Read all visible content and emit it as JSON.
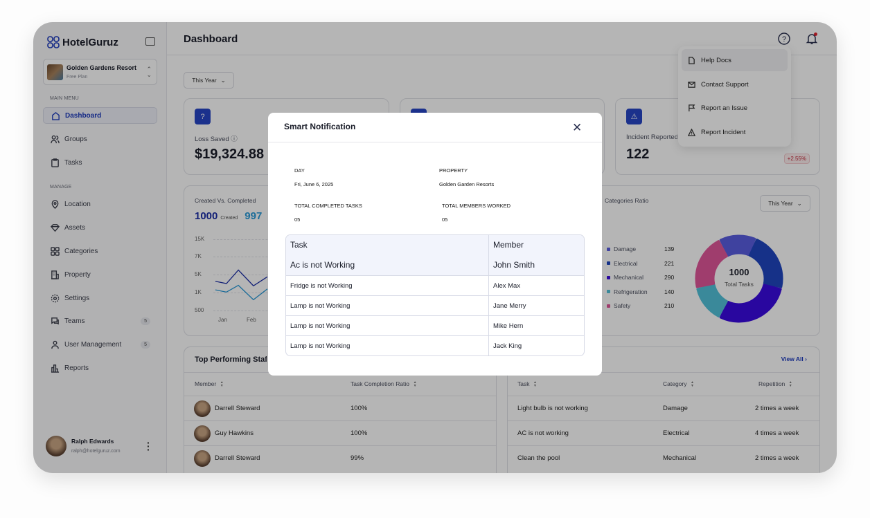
{
  "app": {
    "name": "HotelGuruz",
    "property": {
      "name": "Golden Gardens Resort",
      "plan": "Free Plan"
    }
  },
  "sidebar": {
    "main_menu_label": "MAIN MENU",
    "manage_label": "MANAGE",
    "main_items": [
      {
        "label": "Dashboard",
        "icon": "home-icon"
      },
      {
        "label": "Groups",
        "icon": "users-icon"
      },
      {
        "label": "Tasks",
        "icon": "clipboard-icon"
      }
    ],
    "manage_items": [
      {
        "label": "Location",
        "icon": "map-pin-icon",
        "badge": null
      },
      {
        "label": "Assets",
        "icon": "diamond-icon",
        "badge": null
      },
      {
        "label": "Categories",
        "icon": "grid-icon",
        "badge": null
      },
      {
        "label": "Property",
        "icon": "building-icon",
        "badge": null
      },
      {
        "label": "Settings",
        "icon": "gear-icon",
        "badge": null
      },
      {
        "label": "Teams",
        "icon": "chat-icon",
        "badge": "5"
      },
      {
        "label": "User Management",
        "icon": "user-icon",
        "badge": "5"
      },
      {
        "label": "Reports",
        "icon": "bar-chart-icon",
        "badge": null
      }
    ],
    "user": {
      "name": "Ralph Edwards",
      "email": "ralph@hotelguruz.com"
    }
  },
  "header": {
    "title": "Dashboard"
  },
  "help_menu": {
    "items": [
      "Help Docs",
      "Contact Support",
      "Report an Issue",
      "Report Incident"
    ]
  },
  "filter": "This Year",
  "stats": [
    {
      "label": "Loss Saved",
      "value": "$19,324.88"
    },
    {
      "label": "Incident Reported",
      "value": "122",
      "change": "+2.55%"
    }
  ],
  "colors": {
    "brand": "#1d3bbd",
    "negative": "#c3283a"
  },
  "chart_data": [
    {
      "type": "line",
      "title": "Created Vs. Completed",
      "summary": {
        "created": "1000",
        "created_label": "Created",
        "completed": "997"
      },
      "y_ticks": [
        "15K",
        "7K",
        "5K",
        "1K",
        "500"
      ],
      "x_ticks": [
        "Jan",
        "Feb"
      ],
      "series": [
        {
          "color": "#1d2fa8",
          "values": [
            [
              -0.27,
              3500
            ],
            [
              0.12,
              3000
            ],
            [
              0.54,
              5500
            ],
            [
              1.07,
              2500
            ],
            [
              1.56,
              4500
            ]
          ]
        },
        {
          "color": "#2a9ad8",
          "values": [
            [
              -0.27,
              1600
            ],
            [
              0.12,
              1100
            ],
            [
              0.54,
              2600
            ],
            [
              1.07,
              800
            ],
            [
              1.56,
              1800
            ]
          ]
        }
      ]
    },
    {
      "type": "pie",
      "title": "Categories Ratio",
      "filter": "This Year",
      "total": "1000",
      "total_label": "Total Tasks",
      "slices": [
        {
          "label": "Damage",
          "value": 139,
          "color": "#5a5ee0"
        },
        {
          "label": "Electrical",
          "value": 221,
          "color": "#1f45c0"
        },
        {
          "label": "Mechanical",
          "value": 290,
          "color": "#3a0ae0"
        },
        {
          "label": "Refrigeration",
          "value": 140,
          "color": "#52c1da"
        },
        {
          "label": "Safety",
          "value": 210,
          "color": "#e0579a"
        }
      ]
    }
  ],
  "top_staff": {
    "title": "Top Performing Staff",
    "columns": [
      "Member",
      "Task Completion Ratio"
    ],
    "rows": [
      [
        "Darrell Steward",
        "100%"
      ],
      [
        "Guy Hawkins",
        "100%"
      ],
      [
        "Darrell Steward",
        "99%"
      ]
    ]
  },
  "recurring": {
    "view_all": "View All",
    "columns": [
      "Task",
      "Category",
      "Repetition"
    ],
    "rows": [
      [
        "Light bulb is not working",
        "Damage",
        "2 times a week"
      ],
      [
        "AC is not working",
        "Electrical",
        "4 times a week"
      ],
      [
        "Clean the pool",
        "Mechanical",
        "2 times a week"
      ]
    ]
  },
  "modal": {
    "title": "Smart Notification",
    "day_label": "DAY",
    "day": "Fri, June 6, 2025",
    "property_label": "PROPERTY",
    "property": "Golden Garden Resorts",
    "completed_label": "TOTAL COMPLETED TASKS",
    "completed": "05",
    "members_label": "TOTAL MEMBERS WORKED",
    "members": "05",
    "columns": [
      "Task",
      "Member"
    ],
    "rows": [
      [
        "Ac is not Working",
        "John Smith"
      ],
      [
        "Fridge is not Working",
        "Alex Max"
      ],
      [
        "Lamp is not Working",
        "Jane Merry"
      ],
      [
        "Lamp is not Working",
        "Mike Hern"
      ],
      [
        "Lamp is not Working",
        "Jack King"
      ]
    ]
  }
}
